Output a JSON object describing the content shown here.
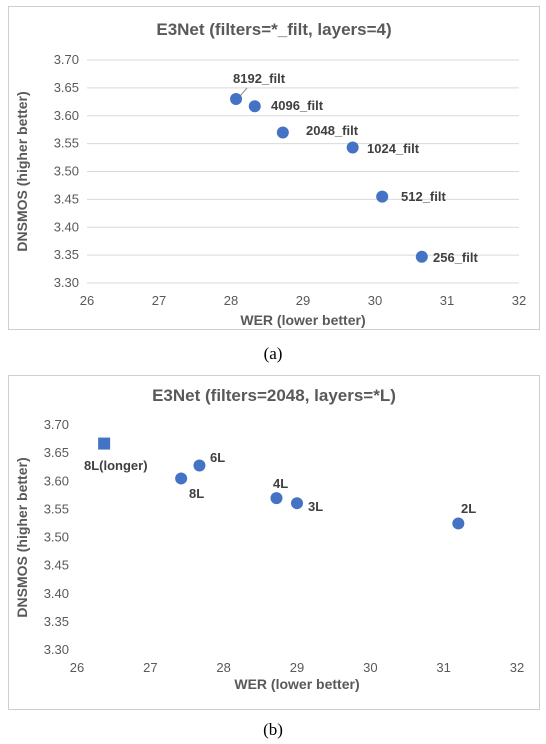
{
  "captions": [
    "(a)",
    "(b)"
  ],
  "chart_data": [
    {
      "type": "scatter",
      "title": "E3Net (filters=*_filt, layers=4)",
      "xlabel": "WER (lower better)",
      "ylabel": "DNSMOS (higher  better)",
      "xlim": [
        26,
        32
      ],
      "ylim": [
        3.3,
        3.7
      ],
      "xticks": [
        "26",
        "27",
        "28",
        "29",
        "30",
        "31",
        "32"
      ],
      "yticks": [
        "3.30",
        "3.35",
        "3.40",
        "3.45",
        "3.50",
        "3.55",
        "3.60",
        "3.65",
        "3.70"
      ],
      "grid": "horizontal",
      "color": "#4472c4",
      "points": [
        {
          "label": "8192_filt",
          "x": 28.07,
          "y": 3.63,
          "marker": "circle"
        },
        {
          "label": "4096_filt",
          "x": 28.33,
          "y": 3.617,
          "marker": "circle"
        },
        {
          "label": "2048_filt",
          "x": 28.72,
          "y": 3.57,
          "marker": "circle"
        },
        {
          "label": "1024_filt",
          "x": 29.69,
          "y": 3.543,
          "marker": "circle"
        },
        {
          "label": "512_filt",
          "x": 30.1,
          "y": 3.455,
          "marker": "circle"
        },
        {
          "label": "256_filt",
          "x": 30.65,
          "y": 3.347,
          "marker": "circle"
        }
      ]
    },
    {
      "type": "scatter",
      "title": "E3Net (filters=2048, layers=*L)",
      "xlabel": "WER (lower better)",
      "ylabel": "DNSMOS (higher better)",
      "xlim": [
        26,
        32
      ],
      "ylim": [
        3.3,
        3.7
      ],
      "xticks": [
        "26",
        "27",
        "28",
        "29",
        "30",
        "31",
        "32"
      ],
      "yticks": [
        "3.30",
        "3.35",
        "3.40",
        "3.45",
        "3.50",
        "3.55",
        "3.60",
        "3.65",
        "3.70"
      ],
      "grid": "none",
      "color": "#4472c4",
      "points": [
        {
          "label": "8L(longer)",
          "x": 26.37,
          "y": 3.667,
          "marker": "square"
        },
        {
          "label": "6L",
          "x": 27.67,
          "y": 3.628,
          "marker": "circle"
        },
        {
          "label": "8L",
          "x": 27.42,
          "y": 3.605,
          "marker": "circle"
        },
        {
          "label": "4L",
          "x": 28.72,
          "y": 3.57,
          "marker": "circle"
        },
        {
          "label": "3L",
          "x": 29.0,
          "y": 3.561,
          "marker": "circle"
        },
        {
          "label": "2L",
          "x": 31.2,
          "y": 3.525,
          "marker": "circle"
        }
      ]
    }
  ]
}
